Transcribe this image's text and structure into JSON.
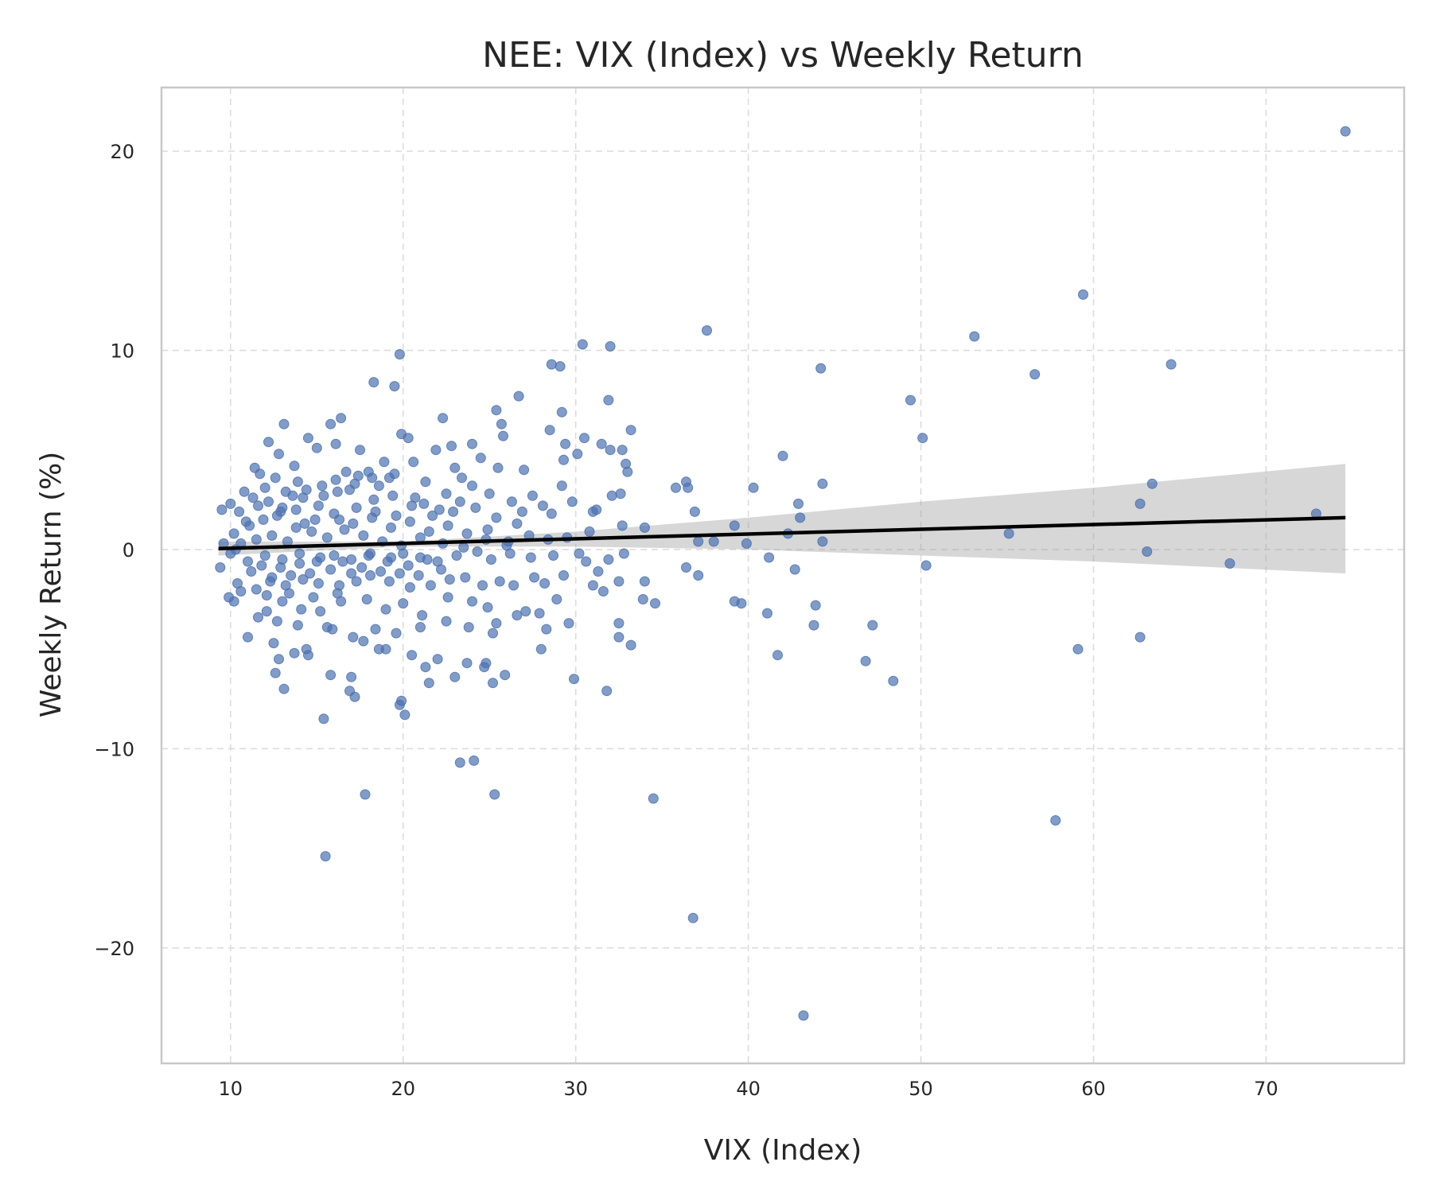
{
  "chart_data": {
    "type": "scatter",
    "title": "NEE: VIX (Index) vs Weekly Return",
    "xlabel": "VIX (Index)",
    "ylabel": "Weekly Return (%)",
    "xlim": [
      6,
      78
    ],
    "ylim": [
      -25.8,
      23.2
    ],
    "xticks": [
      10,
      20,
      30,
      40,
      50,
      60,
      70
    ],
    "yticks": [
      -20,
      -10,
      0,
      10,
      20
    ],
    "xtick_labels": [
      "10",
      "20",
      "30",
      "40",
      "50",
      "60",
      "70"
    ],
    "ytick_labels": [
      "−20",
      "−10",
      "0",
      "10",
      "20"
    ],
    "grid": true,
    "colors": {
      "points": "#4c72b0",
      "fit_line": "#000000",
      "confidence_band": "#b0b0b0"
    },
    "regression": {
      "x_range": [
        9.3,
        74.6
      ],
      "y_start": 0.05,
      "y_end": 1.6
    },
    "confidence_band": {
      "x": [
        9.3,
        20,
        30,
        40,
        50,
        60,
        74.6
      ],
      "upper": [
        0.4,
        0.4,
        0.9,
        1.6,
        2.4,
        3.1,
        4.3
      ],
      "lower": [
        -0.3,
        0.15,
        0.15,
        0,
        -0.3,
        -0.6,
        -1.2
      ]
    },
    "points": [
      [
        74.6,
        21.0
      ],
      [
        59.4,
        12.8
      ],
      [
        53.1,
        10.7
      ],
      [
        56.6,
        8.8
      ],
      [
        64.5,
        9.3
      ],
      [
        49.4,
        7.5
      ],
      [
        50.1,
        5.6
      ],
      [
        37.6,
        11.0
      ],
      [
        30.4,
        10.3
      ],
      [
        32.0,
        10.2
      ],
      [
        19.8,
        9.8
      ],
      [
        18.3,
        8.4
      ],
      [
        19.5,
        8.2
      ],
      [
        28.6,
        9.3
      ],
      [
        29.1,
        9.2
      ],
      [
        44.2,
        9.1
      ],
      [
        31.9,
        7.5
      ],
      [
        26.7,
        7.7
      ],
      [
        25.4,
        7.0
      ],
      [
        29.2,
        6.9
      ],
      [
        16.4,
        6.6
      ],
      [
        22.3,
        6.6
      ],
      [
        25.7,
        6.3
      ],
      [
        33.2,
        6.0
      ],
      [
        28.5,
        6.0
      ],
      [
        30.5,
        5.6
      ],
      [
        29.4,
        5.3
      ],
      [
        31.5,
        5.3
      ],
      [
        32.0,
        5.0
      ],
      [
        32.7,
        5.0
      ],
      [
        22.8,
        5.2
      ],
      [
        24.0,
        5.3
      ],
      [
        27.0,
        4.0
      ],
      [
        29.3,
        4.5
      ],
      [
        30.1,
        4.8
      ],
      [
        32.9,
        4.3
      ],
      [
        33.0,
        3.9
      ],
      [
        42.0,
        4.7
      ],
      [
        44.3,
        3.3
      ],
      [
        36.4,
        3.4
      ],
      [
        36.5,
        3.1
      ],
      [
        35.8,
        3.1
      ],
      [
        36.9,
        1.9
      ],
      [
        40.3,
        3.1
      ],
      [
        42.9,
        2.3
      ],
      [
        43.0,
        1.6
      ],
      [
        39.2,
        1.2
      ],
      [
        34.0,
        1.1
      ],
      [
        37.1,
        0.4
      ],
      [
        38.0,
        0.4
      ],
      [
        39.9,
        0.3
      ],
      [
        42.3,
        0.8
      ],
      [
        44.3,
        0.4
      ],
      [
        55.1,
        0.8
      ],
      [
        62.7,
        2.3
      ],
      [
        63.4,
        3.3
      ],
      [
        72.9,
        1.8
      ],
      [
        63.1,
        -0.1
      ],
      [
        67.9,
        -0.7
      ],
      [
        50.3,
        -0.8
      ],
      [
        41.2,
        -0.4
      ],
      [
        36.4,
        -0.9
      ],
      [
        37.1,
        -1.3
      ],
      [
        42.7,
        -1.0
      ],
      [
        34.0,
        -1.6
      ],
      [
        33.9,
        -2.5
      ],
      [
        34.6,
        -2.7
      ],
      [
        39.2,
        -2.6
      ],
      [
        39.6,
        -2.7
      ],
      [
        41.1,
        -3.2
      ],
      [
        43.9,
        -2.8
      ],
      [
        43.8,
        -3.8
      ],
      [
        47.2,
        -3.8
      ],
      [
        41.7,
        -5.3
      ],
      [
        46.8,
        -5.6
      ],
      [
        48.4,
        -6.6
      ],
      [
        59.1,
        -5.0
      ],
      [
        62.7,
        -4.4
      ],
      [
        32.5,
        -3.7
      ],
      [
        32.5,
        -4.4
      ],
      [
        33.2,
        -4.8
      ],
      [
        29.9,
        -6.5
      ],
      [
        31.8,
        -7.1
      ],
      [
        29.6,
        -3.7
      ],
      [
        28.0,
        -5.0
      ],
      [
        34.5,
        -12.5
      ],
      [
        36.8,
        -18.5
      ],
      [
        43.2,
        -23.4
      ],
      [
        57.8,
        -13.6
      ],
      [
        25.3,
        -12.3
      ],
      [
        24.1,
        -10.6
      ],
      [
        23.3,
        -10.7
      ],
      [
        17.8,
        -12.3
      ],
      [
        15.5,
        -15.4
      ],
      [
        20.1,
        -8.3
      ],
      [
        19.8,
        -7.8
      ],
      [
        19.9,
        -7.6
      ],
      [
        15.4,
        -8.5
      ],
      [
        17.2,
        -7.4
      ],
      [
        16.9,
        -7.1
      ],
      [
        17.0,
        -6.4
      ],
      [
        13.1,
        -7.0
      ],
      [
        12.6,
        -6.2
      ],
      [
        15.8,
        -6.3
      ],
      [
        21.5,
        -6.7
      ],
      [
        23.0,
        -6.4
      ],
      [
        24.7,
        -5.9
      ],
      [
        24.8,
        -5.7
      ],
      [
        23.7,
        -5.7
      ],
      [
        25.2,
        -6.7
      ],
      [
        25.9,
        -6.3
      ],
      [
        22.0,
        -5.5
      ],
      [
        21.3,
        -5.9
      ],
      [
        20.5,
        -5.3
      ],
      [
        18.6,
        -5.0
      ],
      [
        19.0,
        -5.0
      ],
      [
        14.5,
        -5.3
      ],
      [
        14.4,
        -5.0
      ],
      [
        13.7,
        -5.2
      ],
      [
        12.8,
        -5.5
      ],
      [
        12.5,
        -4.7
      ],
      [
        11.0,
        -4.4
      ],
      [
        15.9,
        -4.0
      ],
      [
        17.1,
        -4.4
      ],
      [
        17.7,
        -4.6
      ],
      [
        18.4,
        -4.0
      ],
      [
        19.6,
        -4.2
      ],
      [
        21.0,
        -3.9
      ],
      [
        22.5,
        -3.6
      ],
      [
        23.8,
        -3.9
      ],
      [
        25.2,
        -4.2
      ],
      [
        25.4,
        -3.7
      ],
      [
        26.6,
        -3.3
      ],
      [
        27.1,
        -3.1
      ],
      [
        27.9,
        -3.2
      ],
      [
        28.3,
        -4.0
      ],
      [
        28.9,
        -2.5
      ],
      [
        24.9,
        -2.9
      ],
      [
        24.0,
        -2.6
      ],
      [
        22.6,
        -2.4
      ],
      [
        21.1,
        -3.3
      ],
      [
        20.0,
        -2.7
      ],
      [
        19.0,
        -3.0
      ],
      [
        16.4,
        -2.6
      ],
      [
        15.2,
        -3.1
      ],
      [
        14.1,
        -3.0
      ],
      [
        13.0,
        -2.6
      ],
      [
        12.1,
        -3.1
      ],
      [
        11.6,
        -3.4
      ],
      [
        10.2,
        -2.6
      ],
      [
        9.9,
        -2.4
      ],
      [
        9.4,
        -0.9
      ],
      [
        10.4,
        -1.7
      ],
      [
        10.6,
        -2.1
      ],
      [
        11.5,
        -2.0
      ],
      [
        12.3,
        -1.6
      ],
      [
        13.2,
        -1.8
      ],
      [
        14.2,
        -1.5
      ],
      [
        15.1,
        -1.7
      ],
      [
        16.3,
        -1.8
      ],
      [
        17.3,
        -1.6
      ],
      [
        18.1,
        -1.3
      ],
      [
        19.2,
        -1.6
      ],
      [
        20.4,
        -1.9
      ],
      [
        21.6,
        -1.8
      ],
      [
        22.7,
        -1.5
      ],
      [
        23.6,
        -1.4
      ],
      [
        24.6,
        -1.8
      ],
      [
        25.6,
        -1.6
      ],
      [
        26.4,
        -1.8
      ],
      [
        27.6,
        -1.4
      ],
      [
        28.2,
        -1.7
      ],
      [
        29.3,
        -1.3
      ],
      [
        31.0,
        -1.8
      ],
      [
        31.6,
        -2.1
      ],
      [
        32.5,
        -1.6
      ],
      [
        30.6,
        -0.6
      ],
      [
        31.9,
        -0.5
      ],
      [
        32.8,
        -0.2
      ],
      [
        31.3,
        -1.1
      ],
      [
        30.2,
        -0.2
      ],
      [
        28.7,
        -0.3
      ],
      [
        27.4,
        -0.4
      ],
      [
        26.2,
        -0.2
      ],
      [
        25.1,
        -0.5
      ],
      [
        24.3,
        -0.1
      ],
      [
        23.1,
        -0.3
      ],
      [
        22.0,
        -0.6
      ],
      [
        21.0,
        -0.4
      ],
      [
        20.0,
        -0.2
      ],
      [
        19.1,
        -0.6
      ],
      [
        18.0,
        -0.3
      ],
      [
        17.0,
        -0.5
      ],
      [
        16.0,
        -0.3
      ],
      [
        15.0,
        -0.6
      ],
      [
        14.0,
        -0.2
      ],
      [
        13.0,
        -0.5
      ],
      [
        12.0,
        -0.3
      ],
      [
        11.0,
        -0.6
      ],
      [
        10.0,
        -0.2
      ],
      [
        9.6,
        0.3
      ],
      [
        9.5,
        2.0
      ],
      [
        10.0,
        2.3
      ],
      [
        10.8,
        2.9
      ],
      [
        11.4,
        4.1
      ],
      [
        11.7,
        3.8
      ],
      [
        12.2,
        5.4
      ],
      [
        12.8,
        4.8
      ],
      [
        13.1,
        6.3
      ],
      [
        13.7,
        4.2
      ],
      [
        14.5,
        5.6
      ],
      [
        15.0,
        5.1
      ],
      [
        15.8,
        6.3
      ],
      [
        16.1,
        5.3
      ],
      [
        16.7,
        3.9
      ],
      [
        17.5,
        5.0
      ],
      [
        18.2,
        3.6
      ],
      [
        18.9,
        4.4
      ],
      [
        19.5,
        3.8
      ],
      [
        19.9,
        5.8
      ],
      [
        20.3,
        5.6
      ],
      [
        20.6,
        4.4
      ],
      [
        21.3,
        3.4
      ],
      [
        21.9,
        5.0
      ],
      [
        22.5,
        2.8
      ],
      [
        23.0,
        4.1
      ],
      [
        23.4,
        3.6
      ],
      [
        24.0,
        3.2
      ],
      [
        24.5,
        4.6
      ],
      [
        25.0,
        2.8
      ],
      [
        25.5,
        4.1
      ],
      [
        25.8,
        5.7
      ],
      [
        26.3,
        2.4
      ],
      [
        26.9,
        1.9
      ],
      [
        27.5,
        2.7
      ],
      [
        28.1,
        2.2
      ],
      [
        28.6,
        1.8
      ],
      [
        29.2,
        3.2
      ],
      [
        29.8,
        2.4
      ],
      [
        31.2,
        2.0
      ],
      [
        31.0,
        1.9
      ],
      [
        32.1,
        2.7
      ],
      [
        32.6,
        2.8
      ],
      [
        32.7,
        1.2
      ],
      [
        30.8,
        0.9
      ],
      [
        29.5,
        0.6
      ],
      [
        28.4,
        0.5
      ],
      [
        27.3,
        0.7
      ],
      [
        26.1,
        0.4
      ],
      [
        24.9,
        1.0
      ],
      [
        23.7,
        0.8
      ],
      [
        22.6,
        1.2
      ],
      [
        21.5,
        0.9
      ],
      [
        20.4,
        1.4
      ],
      [
        19.3,
        1.1
      ],
      [
        18.2,
        1.6
      ],
      [
        17.1,
        1.3
      ],
      [
        16.0,
        1.8
      ],
      [
        14.9,
        1.5
      ],
      [
        13.8,
        2.0
      ],
      [
        12.7,
        1.7
      ],
      [
        11.6,
        2.2
      ],
      [
        10.5,
        1.9
      ],
      [
        10.2,
        0.8
      ],
      [
        10.6,
        0.3
      ],
      [
        11.1,
        1.2
      ],
      [
        11.5,
        0.5
      ],
      [
        11.9,
        1.5
      ],
      [
        12.4,
        0.7
      ],
      [
        12.9,
        1.9
      ],
      [
        13.3,
        0.4
      ],
      [
        13.8,
        1.1
      ],
      [
        14.2,
        2.6
      ],
      [
        14.7,
        0.9
      ],
      [
        15.1,
        2.2
      ],
      [
        15.6,
        0.6
      ],
      [
        16.2,
        2.9
      ],
      [
        16.6,
        1.0
      ],
      [
        17.2,
        3.3
      ],
      [
        17.7,
        0.7
      ],
      [
        18.3,
        2.5
      ],
      [
        18.8,
        0.4
      ],
      [
        19.4,
        2.7
      ],
      [
        19.9,
        0.2
      ],
      [
        20.5,
        2.2
      ],
      [
        21.0,
        0.6
      ],
      [
        21.7,
        1.7
      ],
      [
        22.3,
        0.3
      ],
      [
        22.9,
        1.9
      ],
      [
        23.5,
        0.1
      ],
      [
        24.2,
        2.1
      ],
      [
        24.8,
        0.5
      ],
      [
        25.4,
        1.6
      ],
      [
        26.0,
        0.2
      ],
      [
        26.6,
        1.3
      ],
      [
        11.2,
        -1.1
      ],
      [
        11.8,
        -0.8
      ],
      [
        12.4,
        -1.4
      ],
      [
        12.9,
        -0.9
      ],
      [
        13.5,
        -1.3
      ],
      [
        14.0,
        -0.7
      ],
      [
        14.6,
        -1.2
      ],
      [
        15.2,
        -0.4
      ],
      [
        15.8,
        -1.0
      ],
      [
        16.5,
        -0.6
      ],
      [
        17.0,
        -1.2
      ],
      [
        17.6,
        -0.9
      ],
      [
        18.1,
        -0.2
      ],
      [
        18.7,
        -1.1
      ],
      [
        19.3,
        -0.4
      ],
      [
        19.8,
        -1.2
      ],
      [
        20.3,
        -0.8
      ],
      [
        20.9,
        -1.3
      ],
      [
        21.4,
        -0.5
      ],
      [
        22.2,
        -1.0
      ],
      [
        12.0,
        3.1
      ],
      [
        12.6,
        3.6
      ],
      [
        13.2,
        2.9
      ],
      [
        13.9,
        3.4
      ],
      [
        14.4,
        3.0
      ],
      [
        15.3,
        3.2
      ],
      [
        16.1,
        3.5
      ],
      [
        16.9,
        3.0
      ],
      [
        17.4,
        3.7
      ],
      [
        18.0,
        3.9
      ],
      [
        18.6,
        3.2
      ],
      [
        19.2,
        3.6
      ],
      [
        10.9,
        1.4
      ],
      [
        11.3,
        2.6
      ],
      [
        12.2,
        2.4
      ],
      [
        13.0,
        2.1
      ],
      [
        13.6,
        2.7
      ],
      [
        14.3,
        1.3
      ],
      [
        15.4,
        2.7
      ],
      [
        16.3,
        1.5
      ],
      [
        17.3,
        2.1
      ],
      [
        18.4,
        1.9
      ],
      [
        19.6,
        1.7
      ],
      [
        20.7,
        2.6
      ],
      [
        21.2,
        2.3
      ],
      [
        22.1,
        2.0
      ],
      [
        23.3,
        2.4
      ],
      [
        10.3,
        0.0
      ],
      [
        12.1,
        -2.3
      ],
      [
        13.4,
        -2.2
      ],
      [
        14.8,
        -2.4
      ],
      [
        16.2,
        -2.2
      ],
      [
        17.9,
        -2.5
      ],
      [
        12.7,
        -3.6
      ],
      [
        13.9,
        -3.8
      ],
      [
        15.6,
        -3.9
      ]
    ]
  }
}
